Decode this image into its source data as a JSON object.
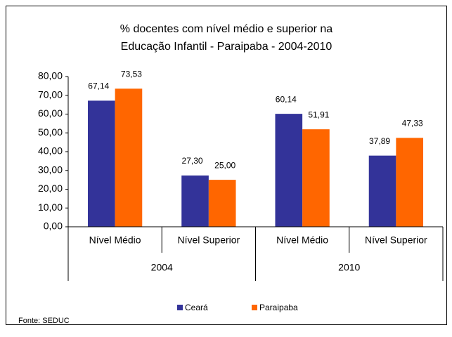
{
  "chart_data": {
    "type": "bar",
    "title": [
      "% docentes com nível médio e superior na",
      "Educação Infantil - Paraipaba  - 2004-2010"
    ],
    "categories": [
      "Nível Médio",
      "Nível Superior",
      "Nível Médio",
      "Nível Superior"
    ],
    "groups": [
      "2004",
      "2010"
    ],
    "series": [
      {
        "name": "Ceará",
        "color": "#333399",
        "values": [
          67.14,
          27.3,
          60.14,
          37.89
        ],
        "value_labels": [
          "67,14",
          "27,30",
          "60,14",
          "37,89"
        ]
      },
      {
        "name": "Paraipaba",
        "color": "#ff6600",
        "values": [
          73.53,
          25.0,
          51.91,
          47.33
        ],
        "value_labels": [
          "73,53",
          "25,00",
          "51,91",
          "47,33"
        ]
      }
    ],
    "ylim": [
      0,
      80
    ],
    "yticks": [
      {
        "value": 0,
        "label": "0,00"
      },
      {
        "value": 10,
        "label": "10,00"
      },
      {
        "value": 20,
        "label": "20,00"
      },
      {
        "value": 30,
        "label": "30,00"
      },
      {
        "value": 40,
        "label": "40,00"
      },
      {
        "value": 50,
        "label": "50,00"
      },
      {
        "value": 60,
        "label": "60,00"
      },
      {
        "value": 70,
        "label": "70,00"
      },
      {
        "value": 80,
        "label": "80,00"
      }
    ],
    "legend": "bottom",
    "source": "Fonte: SEDUC"
  }
}
